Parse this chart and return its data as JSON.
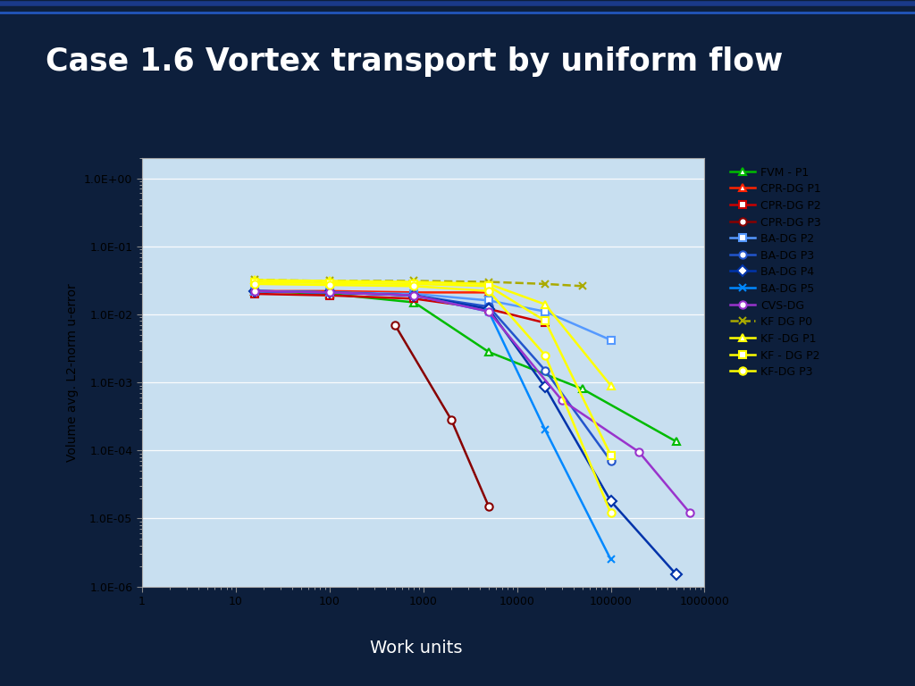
{
  "title": "Case 1.6 Vortex transport by uniform flow",
  "title_bg": "#0d1f3c",
  "title_color": "white",
  "xlabel": "Work units",
  "ylabel": "Volume avg. L2-norm u-error",
  "plot_bg_top": "#c8dff0",
  "plot_bg_bottom": "#daeaf8",
  "outer_bg": "#909090",
  "slide_bg": "#0d1f3c",
  "series": [
    {
      "label": "FVM - P1",
      "color": "#00bb00",
      "marker": "^",
      "linestyle": "-",
      "mfc": "white",
      "x": [
        16,
        100,
        800,
        5000,
        50000,
        500000
      ],
      "y": [
        0.022,
        0.02,
        0.015,
        0.0028,
        0.0008,
        0.000135
      ]
    },
    {
      "label": "CPR-DG P1",
      "color": "#ff2200",
      "marker": "^",
      "linestyle": "-",
      "mfc": "white",
      "x": [
        16,
        100,
        800,
        5000
      ],
      "y": [
        0.022,
        0.022,
        0.021,
        0.021
      ]
    },
    {
      "label": "CPR-DG P2",
      "color": "#cc0000",
      "marker": "s",
      "linestyle": "-",
      "mfc": "white",
      "x": [
        16,
        100,
        800,
        5000,
        20000
      ],
      "y": [
        0.02,
        0.019,
        0.017,
        0.012,
        0.0075
      ]
    },
    {
      "label": "CPR-DG P3",
      "color": "#880000",
      "marker": "o",
      "linestyle": "-",
      "mfc": "white",
      "x": [
        500,
        2000,
        5000
      ],
      "y": [
        0.007,
        0.00028,
        1.5e-05
      ]
    },
    {
      "label": "BA-DG P2",
      "color": "#5599ff",
      "marker": "s",
      "linestyle": "-",
      "mfc": "white",
      "x": [
        16,
        100,
        800,
        5000,
        20000,
        100000
      ],
      "y": [
        0.022,
        0.021,
        0.02,
        0.016,
        0.011,
        0.0042
      ]
    },
    {
      "label": "BA-DG P3",
      "color": "#2255cc",
      "marker": "o",
      "linestyle": "-",
      "mfc": "white",
      "x": [
        16,
        100,
        800,
        5000,
        20000,
        100000
      ],
      "y": [
        0.022,
        0.021,
        0.019,
        0.013,
        0.0015,
        7e-05
      ]
    },
    {
      "label": "BA-DG P4",
      "color": "#0033aa",
      "marker": "D",
      "linestyle": "-",
      "mfc": "white",
      "x": [
        16,
        100,
        800,
        5000,
        20000,
        100000,
        500000
      ],
      "y": [
        0.022,
        0.021,
        0.019,
        0.012,
        0.00085,
        1.8e-05,
        1.5e-06
      ]
    },
    {
      "label": "BA-DG P5",
      "color": "#0088ff",
      "marker": "x",
      "linestyle": "-",
      "mfc": "#0088ff",
      "x": [
        16,
        100,
        800,
        5000,
        20000,
        100000
      ],
      "y": [
        0.022,
        0.021,
        0.019,
        0.011,
        0.0002,
        2.5e-06
      ]
    },
    {
      "label": "CVS-DG",
      "color": "#9933cc",
      "marker": "o",
      "linestyle": "-",
      "mfc": "white",
      "x": [
        16,
        100,
        800,
        5000,
        30000,
        200000,
        700000
      ],
      "y": [
        0.022,
        0.021,
        0.019,
        0.011,
        0.00055,
        9.5e-05,
        1.2e-05
      ]
    },
    {
      "label": "KF DG P0",
      "color": "#aaaa00",
      "marker": "x",
      "linestyle": "--",
      "mfc": "#aaaa00",
      "x": [
        16,
        100,
        800,
        5000,
        20000,
        50000
      ],
      "y": [
        0.032,
        0.031,
        0.031,
        0.03,
        0.028,
        0.026
      ]
    },
    {
      "label": "KF -DG P1",
      "color": "#ffff00",
      "marker": "^",
      "linestyle": "-",
      "mfc": "white",
      "x": [
        16,
        100,
        800,
        5000,
        20000,
        100000
      ],
      "y": [
        0.032,
        0.031,
        0.03,
        0.028,
        0.014,
        0.0009
      ]
    },
    {
      "label": "KF - DG P2",
      "color": "#ffff00",
      "marker": "s",
      "linestyle": "-",
      "mfc": "white",
      "x": [
        16,
        100,
        800,
        5000,
        20000,
        100000
      ],
      "y": [
        0.03,
        0.029,
        0.028,
        0.026,
        0.008,
        8.5e-05
      ]
    },
    {
      "label": "KF-DG P3",
      "color": "#ffff00",
      "marker": "o",
      "linestyle": "-",
      "mfc": "white",
      "x": [
        16,
        100,
        800,
        5000,
        20000,
        100000
      ],
      "y": [
        0.028,
        0.027,
        0.026,
        0.022,
        0.0025,
        1.2e-05
      ]
    }
  ]
}
